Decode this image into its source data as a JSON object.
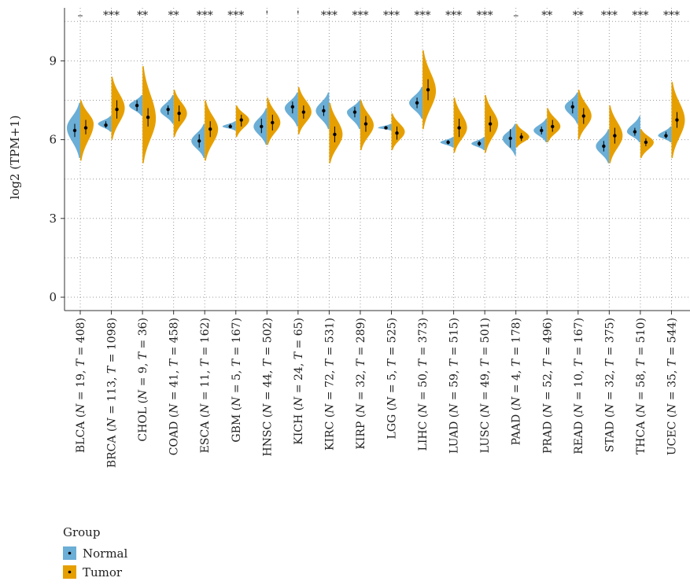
{
  "chart_data": {
    "type": "violin",
    "ylabel": "log2 (TPM+1)",
    "ylim": [
      -0.6,
      11.1
    ],
    "yticks": [
      0,
      3,
      6,
      9
    ],
    "grid": true,
    "legend": {
      "title": "Group",
      "position": "bottom-left",
      "items": [
        {
          "name": "Normal",
          "color": "#6BAED6"
        },
        {
          "name": "Tumor",
          "color": "#E69F00"
        }
      ]
    },
    "categories": [
      {
        "code": "BLCA",
        "n": "19",
        "t": "408",
        "sig": "–",
        "normal": {
          "median": 6.35,
          "q1": 6.1,
          "q3": 6.6,
          "min": 5.3,
          "max": 7.4,
          "peak": 6.45
        },
        "tumor": {
          "median": 6.45,
          "q1": 6.2,
          "q3": 6.75,
          "min": 5.2,
          "max": 7.5,
          "peak": 6.6
        }
      },
      {
        "code": "BRCA",
        "n": "113",
        "t": "1098",
        "sig": "***",
        "normal": {
          "median": 6.55,
          "q1": 6.45,
          "q3": 6.7,
          "min": 6.3,
          "max": 6.9,
          "peak": 6.6
        },
        "tumor": {
          "median": 7.15,
          "q1": 6.8,
          "q3": 7.5,
          "min": 6.0,
          "max": 8.4,
          "peak": 7.2
        }
      },
      {
        "code": "CHOL",
        "n": "9",
        "t": "36",
        "sig": "**",
        "normal": {
          "median": 7.3,
          "q1": 7.1,
          "q3": 7.5,
          "min": 6.9,
          "max": 7.7,
          "peak": 7.3
        },
        "tumor": {
          "median": 6.85,
          "q1": 6.5,
          "q3": 7.2,
          "min": 5.1,
          "max": 8.8,
          "peak": 6.8
        }
      },
      {
        "code": "COAD",
        "n": "41",
        "t": "458",
        "sig": "**",
        "normal": {
          "median": 7.15,
          "q1": 6.95,
          "q3": 7.3,
          "min": 6.6,
          "max": 7.7,
          "peak": 7.1
        },
        "tumor": {
          "median": 7.0,
          "q1": 6.7,
          "q3": 7.3,
          "min": 6.1,
          "max": 7.9,
          "peak": 7.0
        }
      },
      {
        "code": "ESCA",
        "n": "11",
        "t": "162",
        "sig": "***",
        "normal": {
          "median": 5.95,
          "q1": 5.7,
          "q3": 6.2,
          "min": 5.3,
          "max": 6.6,
          "peak": 5.95
        },
        "tumor": {
          "median": 6.4,
          "q1": 6.1,
          "q3": 6.7,
          "min": 5.2,
          "max": 7.5,
          "peak": 6.4
        }
      },
      {
        "code": "GBM",
        "n": "5",
        "t": "167",
        "sig": "***",
        "normal": {
          "median": 6.5,
          "q1": 6.45,
          "q3": 6.6,
          "min": 6.35,
          "max": 6.7,
          "peak": 6.5
        },
        "tumor": {
          "median": 6.75,
          "q1": 6.5,
          "q3": 6.95,
          "min": 6.1,
          "max": 7.3,
          "peak": 6.75
        }
      },
      {
        "code": "HNSC",
        "n": "44",
        "t": "502",
        "sig": "'",
        "normal": {
          "median": 6.5,
          "q1": 6.25,
          "q3": 6.8,
          "min": 5.8,
          "max": 7.2,
          "peak": 6.5
        },
        "tumor": {
          "median": 6.65,
          "q1": 6.35,
          "q3": 6.95,
          "min": 5.8,
          "max": 7.6,
          "peak": 6.65
        }
      },
      {
        "code": "KICH",
        "n": "24",
        "t": "65",
        "sig": "'",
        "normal": {
          "median": 7.25,
          "q1": 7.0,
          "q3": 7.45,
          "min": 6.5,
          "max": 7.8,
          "peak": 7.2
        },
        "tumor": {
          "median": 7.05,
          "q1": 6.8,
          "q3": 7.3,
          "min": 6.2,
          "max": 8.0,
          "peak": 7.05
        }
      },
      {
        "code": "KIRC",
        "n": "72",
        "t": "531",
        "sig": "***",
        "normal": {
          "median": 7.1,
          "q1": 6.9,
          "q3": 7.3,
          "min": 6.4,
          "max": 7.8,
          "peak": 7.1
        },
        "tumor": {
          "median": 6.2,
          "q1": 5.9,
          "q3": 6.5,
          "min": 5.1,
          "max": 7.4,
          "peak": 6.2
        }
      },
      {
        "code": "KIRP",
        "n": "32",
        "t": "289",
        "sig": "***",
        "normal": {
          "median": 7.05,
          "q1": 6.85,
          "q3": 7.25,
          "min": 6.4,
          "max": 7.5,
          "peak": 7.05
        },
        "tumor": {
          "median": 6.6,
          "q1": 6.3,
          "q3": 6.9,
          "min": 5.6,
          "max": 7.5,
          "peak": 6.55
        }
      },
      {
        "code": "LGG",
        "n": "5",
        "t": "525",
        "sig": "***",
        "normal": {
          "median": 6.45,
          "q1": 6.4,
          "q3": 6.5,
          "min": 6.35,
          "max": 6.6,
          "peak": 6.45
        },
        "tumor": {
          "median": 6.25,
          "q1": 6.0,
          "q3": 6.5,
          "min": 5.6,
          "max": 7.0,
          "peak": 6.3
        }
      },
      {
        "code": "LIHC",
        "n": "50",
        "t": "373",
        "sig": "***",
        "normal": {
          "median": 7.4,
          "q1": 7.2,
          "q3": 7.6,
          "min": 6.8,
          "max": 8.0,
          "peak": 7.4
        },
        "tumor": {
          "median": 7.9,
          "q1": 7.5,
          "q3": 8.3,
          "min": 6.4,
          "max": 9.4,
          "peak": 7.85
        }
      },
      {
        "code": "LUAD",
        "n": "59",
        "t": "515",
        "sig": "***",
        "normal": {
          "median": 5.9,
          "q1": 5.82,
          "q3": 5.98,
          "min": 5.7,
          "max": 6.1,
          "peak": 5.9
        },
        "tumor": {
          "median": 6.45,
          "q1": 6.1,
          "q3": 6.8,
          "min": 5.5,
          "max": 7.6,
          "peak": 6.45
        }
      },
      {
        "code": "LUSC",
        "n": "49",
        "t": "501",
        "sig": "***",
        "normal": {
          "median": 5.85,
          "q1": 5.75,
          "q3": 5.95,
          "min": 5.6,
          "max": 6.1,
          "peak": 5.85
        },
        "tumor": {
          "median": 6.6,
          "q1": 6.3,
          "q3": 6.9,
          "min": 5.5,
          "max": 7.7,
          "peak": 6.6
        }
      },
      {
        "code": "PAAD",
        "n": "4",
        "t": "178",
        "sig": "–",
        "normal": {
          "median": 6.05,
          "q1": 5.7,
          "q3": 6.4,
          "min": 5.4,
          "max": 6.6,
          "peak": 6.05
        },
        "tumor": {
          "median": 6.1,
          "q1": 5.95,
          "q3": 6.25,
          "min": 5.7,
          "max": 6.6,
          "peak": 6.1
        }
      },
      {
        "code": "PRAD",
        "n": "52",
        "t": "496",
        "sig": "**",
        "normal": {
          "median": 6.35,
          "q1": 6.2,
          "q3": 6.5,
          "min": 5.9,
          "max": 6.8,
          "peak": 6.35
        },
        "tumor": {
          "median": 6.5,
          "q1": 6.3,
          "q3": 6.75,
          "min": 5.9,
          "max": 7.2,
          "peak": 6.5
        }
      },
      {
        "code": "READ",
        "n": "10",
        "t": "167",
        "sig": "**",
        "normal": {
          "median": 7.25,
          "q1": 7.0,
          "q3": 7.45,
          "min": 6.6,
          "max": 7.8,
          "peak": 7.25
        },
        "tumor": {
          "median": 6.9,
          "q1": 6.6,
          "q3": 7.2,
          "min": 6.0,
          "max": 7.9,
          "peak": 6.9
        }
      },
      {
        "code": "STAD",
        "n": "32",
        "t": "375",
        "sig": "***",
        "normal": {
          "median": 5.75,
          "q1": 5.55,
          "q3": 5.95,
          "min": 5.1,
          "max": 6.4,
          "peak": 5.75
        },
        "tumor": {
          "median": 6.15,
          "q1": 5.85,
          "q3": 6.45,
          "min": 5.1,
          "max": 7.3,
          "peak": 6.15
        }
      },
      {
        "code": "THCA",
        "n": "58",
        "t": "510",
        "sig": "***",
        "normal": {
          "median": 6.3,
          "q1": 6.15,
          "q3": 6.45,
          "min": 5.9,
          "max": 6.9,
          "peak": 6.3
        },
        "tumor": {
          "median": 5.9,
          "q1": 5.75,
          "q3": 6.05,
          "min": 5.3,
          "max": 6.4,
          "peak": 5.9
        }
      },
      {
        "code": "UCEC",
        "n": "35",
        "t": "544",
        "sig": "***",
        "normal": {
          "median": 6.15,
          "q1": 6.05,
          "q3": 6.3,
          "min": 5.9,
          "max": 6.5,
          "peak": 6.15
        },
        "tumor": {
          "median": 6.75,
          "q1": 6.45,
          "q3": 7.05,
          "min": 5.3,
          "max": 8.2,
          "peak": 6.75
        }
      }
    ]
  }
}
